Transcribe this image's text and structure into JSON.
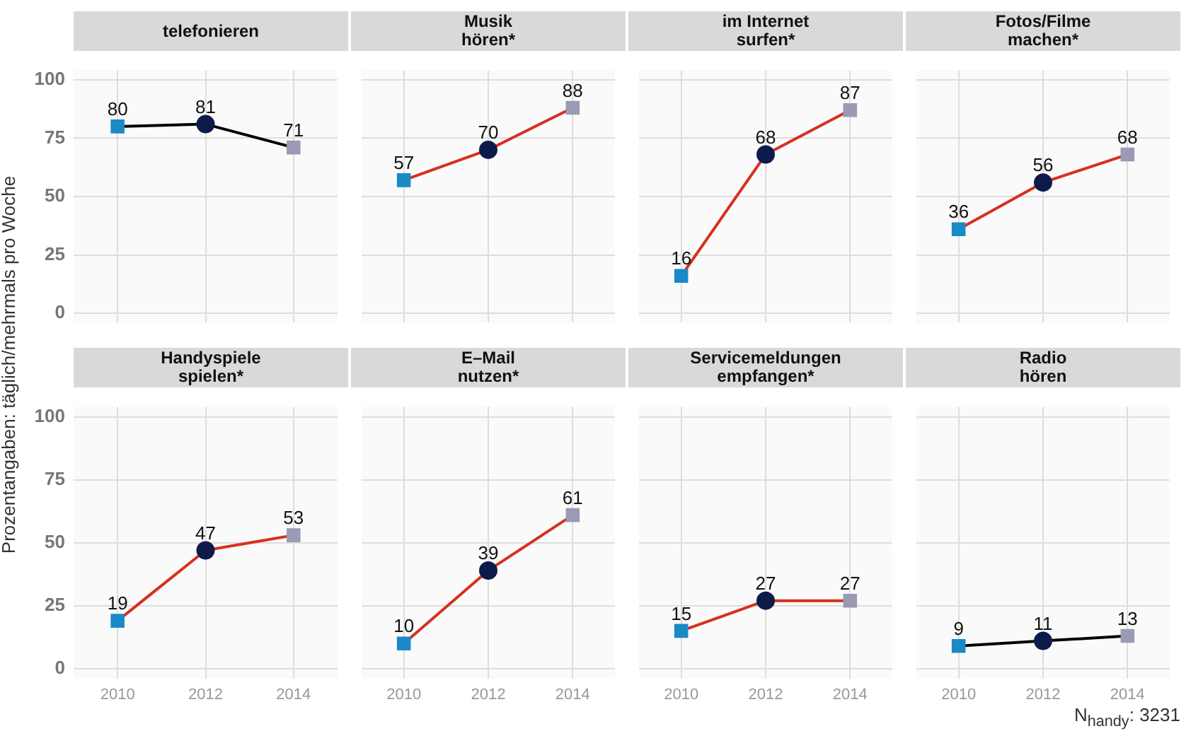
{
  "chart_data": [
    {
      "type": "line",
      "title": "telefonieren",
      "ylabel": "Prozentangaben: täglich/mehrmals pro Woche",
      "categories": [
        "2010",
        "2012",
        "2014"
      ],
      "series": [
        {
          "color": "#000000",
          "colors": [
            "#1a8ac6",
            "#0d1b4a",
            "#9a9ab4"
          ],
          "values": [
            80,
            81,
            71
          ]
        }
      ],
      "marker": [
        "square",
        "circle",
        "square"
      ],
      "ylim": [
        -4,
        104
      ],
      "yticks": [
        0,
        25,
        50,
        75,
        100
      ],
      "grid": true,
      "data_labels": true,
      "tick_labels": "y"
    },
    {
      "type": "line",
      "title": "Musik\nhören*",
      "categories": [
        "2010",
        "2012",
        "2014"
      ],
      "series": [
        {
          "color": "#d7301f",
          "colors": [
            "#1a8ac6",
            "#0d1b4a",
            "#9a9ab4"
          ],
          "values": [
            57,
            70,
            88
          ]
        }
      ],
      "marker": [
        "square",
        "circle",
        "square"
      ],
      "ylim": [
        -4,
        104
      ],
      "yticks": [
        0,
        25,
        50,
        75,
        100
      ],
      "grid": true,
      "data_labels": true,
      "tick_labels": false
    },
    {
      "type": "line",
      "title": "im Internet\nsurfen*",
      "categories": [
        "2010",
        "2012",
        "2014"
      ],
      "series": [
        {
          "color": "#d7301f",
          "colors": [
            "#1a8ac6",
            "#0d1b4a",
            "#9a9ab4"
          ],
          "values": [
            16,
            68,
            87
          ]
        }
      ],
      "marker": [
        "square",
        "circle",
        "square"
      ],
      "ylim": [
        -4,
        104
      ],
      "yticks": [
        0,
        25,
        50,
        75,
        100
      ],
      "grid": true,
      "data_labels": true,
      "tick_labels": false
    },
    {
      "type": "line",
      "title": "Fotos/Filme\nmachen*",
      "categories": [
        "2010",
        "2012",
        "2014"
      ],
      "series": [
        {
          "color": "#d7301f",
          "colors": [
            "#1a8ac6",
            "#0d1b4a",
            "#9a9ab4"
          ],
          "values": [
            36,
            56,
            68
          ]
        }
      ],
      "marker": [
        "square",
        "circle",
        "square"
      ],
      "ylim": [
        -4,
        104
      ],
      "yticks": [
        0,
        25,
        50,
        75,
        100
      ],
      "grid": true,
      "data_labels": true,
      "tick_labels": false
    },
    {
      "type": "line",
      "title": "Handyspiele\nspielen*",
      "categories": [
        "2010",
        "2012",
        "2014"
      ],
      "series": [
        {
          "color": "#d7301f",
          "colors": [
            "#1a8ac6",
            "#0d1b4a",
            "#9a9ab4"
          ],
          "values": [
            19,
            47,
            53
          ]
        }
      ],
      "marker": [
        "square",
        "circle",
        "square"
      ],
      "ylim": [
        -4,
        104
      ],
      "yticks": [
        0,
        25,
        50,
        75,
        100
      ],
      "grid": true,
      "data_labels": true
    },
    {
      "type": "line",
      "title": "E–Mail\nnutzen*",
      "categories": [
        "2010",
        "2012",
        "2014"
      ],
      "series": [
        {
          "color": "#d7301f",
          "colors": [
            "#1a8ac6",
            "#0d1b4a",
            "#9a9ab4"
          ],
          "values": [
            10,
            39,
            61
          ]
        }
      ],
      "marker": [
        "square",
        "circle",
        "square"
      ],
      "ylim": [
        -4,
        104
      ],
      "yticks": [
        0,
        25,
        50,
        75,
        100
      ],
      "grid": true,
      "data_labels": true,
      "tick_labels": "x"
    },
    {
      "type": "line",
      "title": "Servicemeldungen\nempfangen*",
      "categories": [
        "2010",
        "2012",
        "2014"
      ],
      "series": [
        {
          "color": "#d7301f",
          "colors": [
            "#1a8ac6",
            "#0d1b4a",
            "#9a9ab4"
          ],
          "values": [
            15,
            27,
            27
          ]
        }
      ],
      "marker": [
        "square",
        "circle",
        "square"
      ],
      "ylim": [
        -4,
        104
      ],
      "yticks": [
        0,
        25,
        50,
        75,
        100
      ],
      "grid": true,
      "data_labels": true,
      "tick_labels": "x"
    },
    {
      "type": "line",
      "title": "Radio\nhören",
      "categories": [
        "2010",
        "2012",
        "2014"
      ],
      "series": [
        {
          "color": "#000000",
          "colors": [
            "#1a8ac6",
            "#0d1b4a",
            "#9a9ab4"
          ],
          "values": [
            9,
            11,
            13
          ]
        }
      ],
      "marker": [
        "square",
        "circle",
        "square"
      ],
      "ylim": [
        -4,
        104
      ],
      "yticks": [
        0,
        25,
        50,
        75,
        100
      ],
      "grid": true,
      "data_labels": true,
      "tick_labels": "x",
      "annotations": [
        "N$_{handy}$: 3231"
      ]
    }
  ]
}
